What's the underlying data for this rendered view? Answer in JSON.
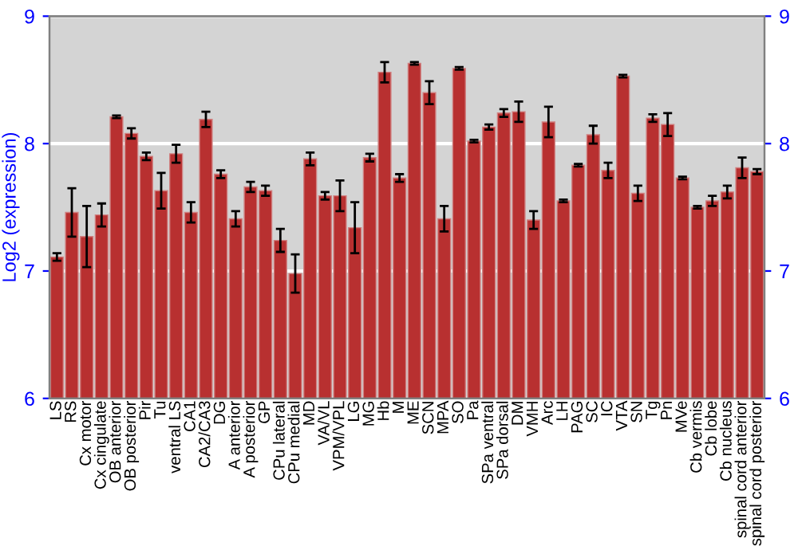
{
  "chart_data": {
    "type": "bar",
    "ylabel": "Log2 (expression)",
    "categories": [
      "LS",
      "RS",
      "Cx motor",
      "Cx cingulate",
      "OB anterior",
      "OB posterior",
      "Pir",
      "Tu",
      "ventral LS",
      "CA1",
      "CA2/CA3",
      "DG",
      "A anterior",
      "A posterior",
      "GP",
      "CPu lateral",
      "CPu medial",
      "MD",
      "VA/VL",
      "VPM/VPL",
      "LG",
      "MG",
      "Hb",
      "M",
      "ME",
      "SCN",
      "MPA",
      "SO",
      "Pa",
      "SPa ventral",
      "SPa dorsal",
      "DM",
      "VMH",
      "Arc",
      "LH",
      "PAG",
      "SC",
      "IC",
      "VTA",
      "SN",
      "Tg",
      "Pn",
      "MVe",
      "Cb vermis",
      "Cb lobe",
      "Cb nucleus",
      "spinal cord anterior",
      "spinal cord posterior"
    ],
    "values": [
      7.11,
      7.46,
      7.27,
      7.44,
      8.21,
      8.08,
      7.9,
      7.63,
      7.92,
      7.46,
      8.19,
      7.76,
      7.41,
      7.66,
      7.63,
      7.24,
      6.98,
      7.88,
      7.59,
      7.59,
      7.34,
      7.89,
      8.56,
      7.73,
      8.63,
      8.4,
      7.41,
      8.59,
      8.02,
      8.13,
      8.24,
      8.25,
      7.4,
      8.17,
      7.55,
      7.83,
      8.07,
      7.79,
      8.53,
      7.61,
      8.2,
      8.15,
      7.73,
      7.5,
      7.55,
      7.62,
      7.81,
      7.78
    ],
    "errors": [
      0.03,
      0.19,
      0.24,
      0.09,
      0.01,
      0.04,
      0.03,
      0.14,
      0.07,
      0.08,
      0.06,
      0.03,
      0.06,
      0.04,
      0.04,
      0.09,
      0.15,
      0.05,
      0.03,
      0.12,
      0.2,
      0.03,
      0.08,
      0.03,
      0.01,
      0.09,
      0.1,
      0.01,
      0.01,
      0.02,
      0.03,
      0.08,
      0.07,
      0.12,
      0.01,
      0.01,
      0.07,
      0.06,
      0.01,
      0.06,
      0.03,
      0.09,
      0.01,
      0.01,
      0.04,
      0.05,
      0.08,
      0.02
    ],
    "color": "#b83030",
    "ylim": [
      6,
      9
    ],
    "yticks": [
      6,
      7,
      8,
      9
    ],
    "y2lim": [
      6,
      9
    ],
    "y2ticks": [
      6,
      7,
      8,
      9
    ],
    "grid": "y"
  }
}
